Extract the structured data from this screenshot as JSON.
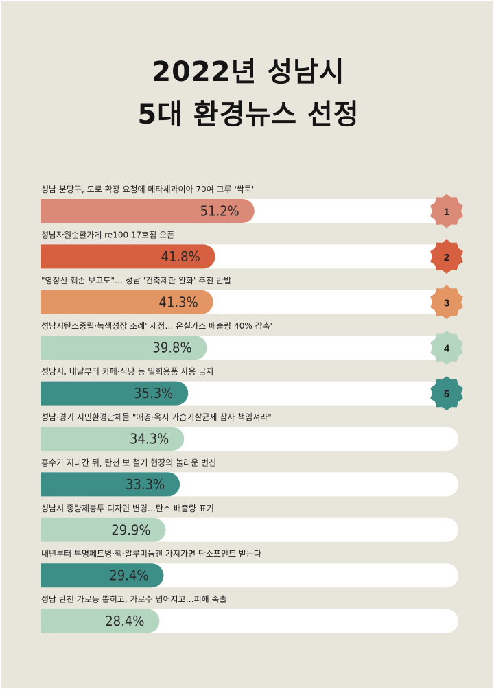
{
  "title": {
    "line1": "2022년 성남시",
    "line2": "5대 환경뉴스 선정"
  },
  "chart_data": {
    "type": "bar",
    "orientation": "horizontal",
    "value_unit": "%",
    "xlim": [
      0,
      100
    ],
    "categories": [
      "성남 분당구, 도로 확장 요청에 메타세과이아 70여 그루 '싹둑'",
      "성남자원순환가게 re100 17호점 오픈",
      "\"영장산 훼손 보고도\"… 성남 '건축제한 완화' 추진 반발",
      "성남시탄소중립·녹색성장 조례' 제정… 온실가스 배출량 40% 감축'",
      "성남시, 내달부터 카페·식당 등 일회용품 사용 금지",
      "성남·경기 시민환경단체들 \"애경·옥시 가습기살균제 참사 책임져라\"",
      "홍수가 지나간 뒤, 탄천 보 철거 현장의 놀라운 변신",
      "성남시 종량제봉투 디자인 변경…탄소 배출량 표기",
      "내년부터 투명페트병·책·알루미늄캔 가져가면 탄소포인트 받는다",
      "성남 탄천 가로등 뽑히고, 가로수 넘어지고…피해 속출"
    ],
    "values": [
      51.2,
      41.8,
      41.3,
      39.8,
      35.3,
      34.3,
      33.3,
      29.9,
      29.4,
      28.4
    ],
    "value_labels": [
      "51.2%",
      "41.8%",
      "41.3%",
      "39.8%",
      "35.3%",
      "34.3%",
      "33.3%",
      "29.9%",
      "29.4%",
      "28.4%"
    ],
    "bar_colors": [
      "#dc8a78",
      "#d6603f",
      "#e39563",
      "#b4d5c0",
      "#3e8e88",
      "#b4d5c0",
      "#3e8e88",
      "#b4d5c0",
      "#3e8e88",
      "#b4d5c0"
    ],
    "track_color": "#ffffff",
    "ranks": [
      {
        "label": "1",
        "color": "#dc8a78"
      },
      {
        "label": "2",
        "color": "#d6603f"
      },
      {
        "label": "3",
        "color": "#e39563"
      },
      {
        "label": "4",
        "color": "#b4d5c0"
      },
      {
        "label": "5",
        "color": "#3e8e88"
      }
    ]
  }
}
